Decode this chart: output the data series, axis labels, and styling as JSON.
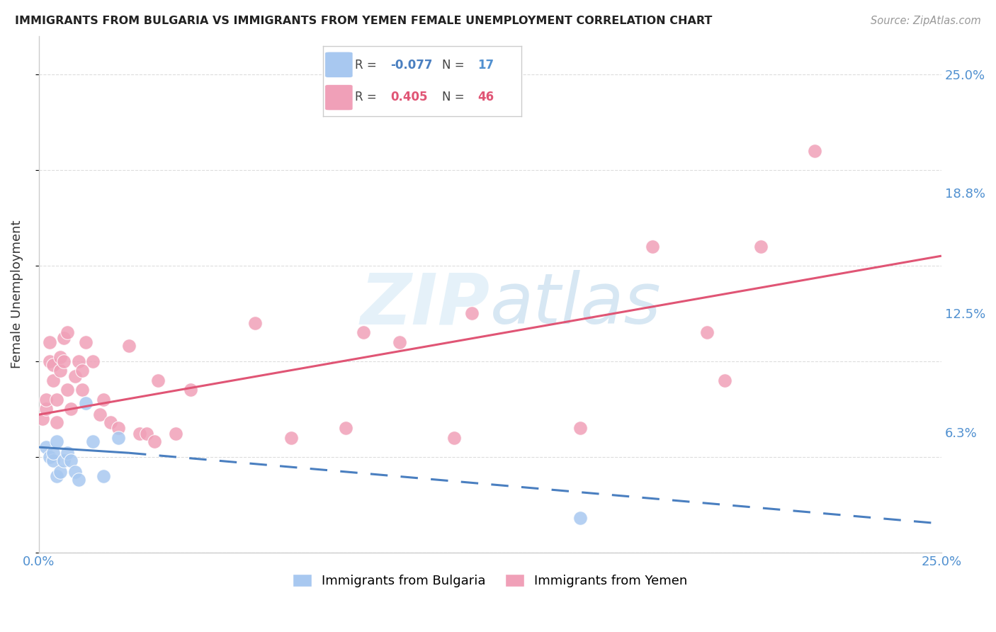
{
  "title": "IMMIGRANTS FROM BULGARIA VS IMMIGRANTS FROM YEMEN FEMALE UNEMPLOYMENT CORRELATION CHART",
  "source": "Source: ZipAtlas.com",
  "ylabel": "Female Unemployment",
  "ytick_labels": [
    "25.0%",
    "18.8%",
    "12.5%",
    "6.3%"
  ],
  "ytick_values": [
    0.25,
    0.188,
    0.125,
    0.063
  ],
  "xlim": [
    0.0,
    0.25
  ],
  "ylim": [
    0.0,
    0.27
  ],
  "legend_r_bulgaria": "-0.077",
  "legend_n_bulgaria": "17",
  "legend_r_yemen": "0.405",
  "legend_n_yemen": "46",
  "color_bulgaria": "#a8c8f0",
  "color_yemen": "#f0a0b8",
  "color_bulgaria_line": "#4a7fc0",
  "color_yemen_line": "#e05575",
  "color_axis_labels": "#5090d0",
  "color_text": "#333333",
  "color_grid": "#dddddd",
  "bulgaria_x": [
    0.002,
    0.003,
    0.004,
    0.004,
    0.005,
    0.005,
    0.006,
    0.007,
    0.008,
    0.009,
    0.01,
    0.011,
    0.013,
    0.015,
    0.018,
    0.022,
    0.15
  ],
  "bulgaria_y": [
    0.055,
    0.05,
    0.048,
    0.052,
    0.058,
    0.04,
    0.042,
    0.048,
    0.052,
    0.048,
    0.042,
    0.038,
    0.078,
    0.058,
    0.04,
    0.06,
    0.018
  ],
  "yemen_x": [
    0.001,
    0.002,
    0.002,
    0.003,
    0.003,
    0.004,
    0.004,
    0.005,
    0.005,
    0.006,
    0.006,
    0.007,
    0.007,
    0.008,
    0.008,
    0.009,
    0.01,
    0.011,
    0.012,
    0.012,
    0.013,
    0.015,
    0.017,
    0.018,
    0.02,
    0.022,
    0.025,
    0.028,
    0.03,
    0.032,
    0.033,
    0.038,
    0.042,
    0.06,
    0.07,
    0.085,
    0.09,
    0.1,
    0.115,
    0.12,
    0.15,
    0.17,
    0.185,
    0.19,
    0.2,
    0.215
  ],
  "yemen_y": [
    0.07,
    0.075,
    0.08,
    0.1,
    0.11,
    0.09,
    0.098,
    0.068,
    0.08,
    0.095,
    0.102,
    0.1,
    0.112,
    0.085,
    0.115,
    0.075,
    0.092,
    0.1,
    0.095,
    0.085,
    0.11,
    0.1,
    0.072,
    0.08,
    0.068,
    0.065,
    0.108,
    0.062,
    0.062,
    0.058,
    0.09,
    0.062,
    0.085,
    0.12,
    0.06,
    0.065,
    0.115,
    0.11,
    0.06,
    0.125,
    0.065,
    0.16,
    0.115,
    0.09,
    0.16,
    0.21
  ],
  "yemen_line_x0": 0.0,
  "yemen_line_y0": 0.072,
  "yemen_line_x1": 0.25,
  "yemen_line_y1": 0.155,
  "bulgaria_line_solid_x0": 0.0,
  "bulgaria_line_solid_y0": 0.055,
  "bulgaria_line_solid_x1": 0.025,
  "bulgaria_line_solid_y1": 0.052,
  "bulgaria_line_dash_x0": 0.025,
  "bulgaria_line_dash_y0": 0.052,
  "bulgaria_line_dash_x1": 0.25,
  "bulgaria_line_dash_y1": 0.015
}
